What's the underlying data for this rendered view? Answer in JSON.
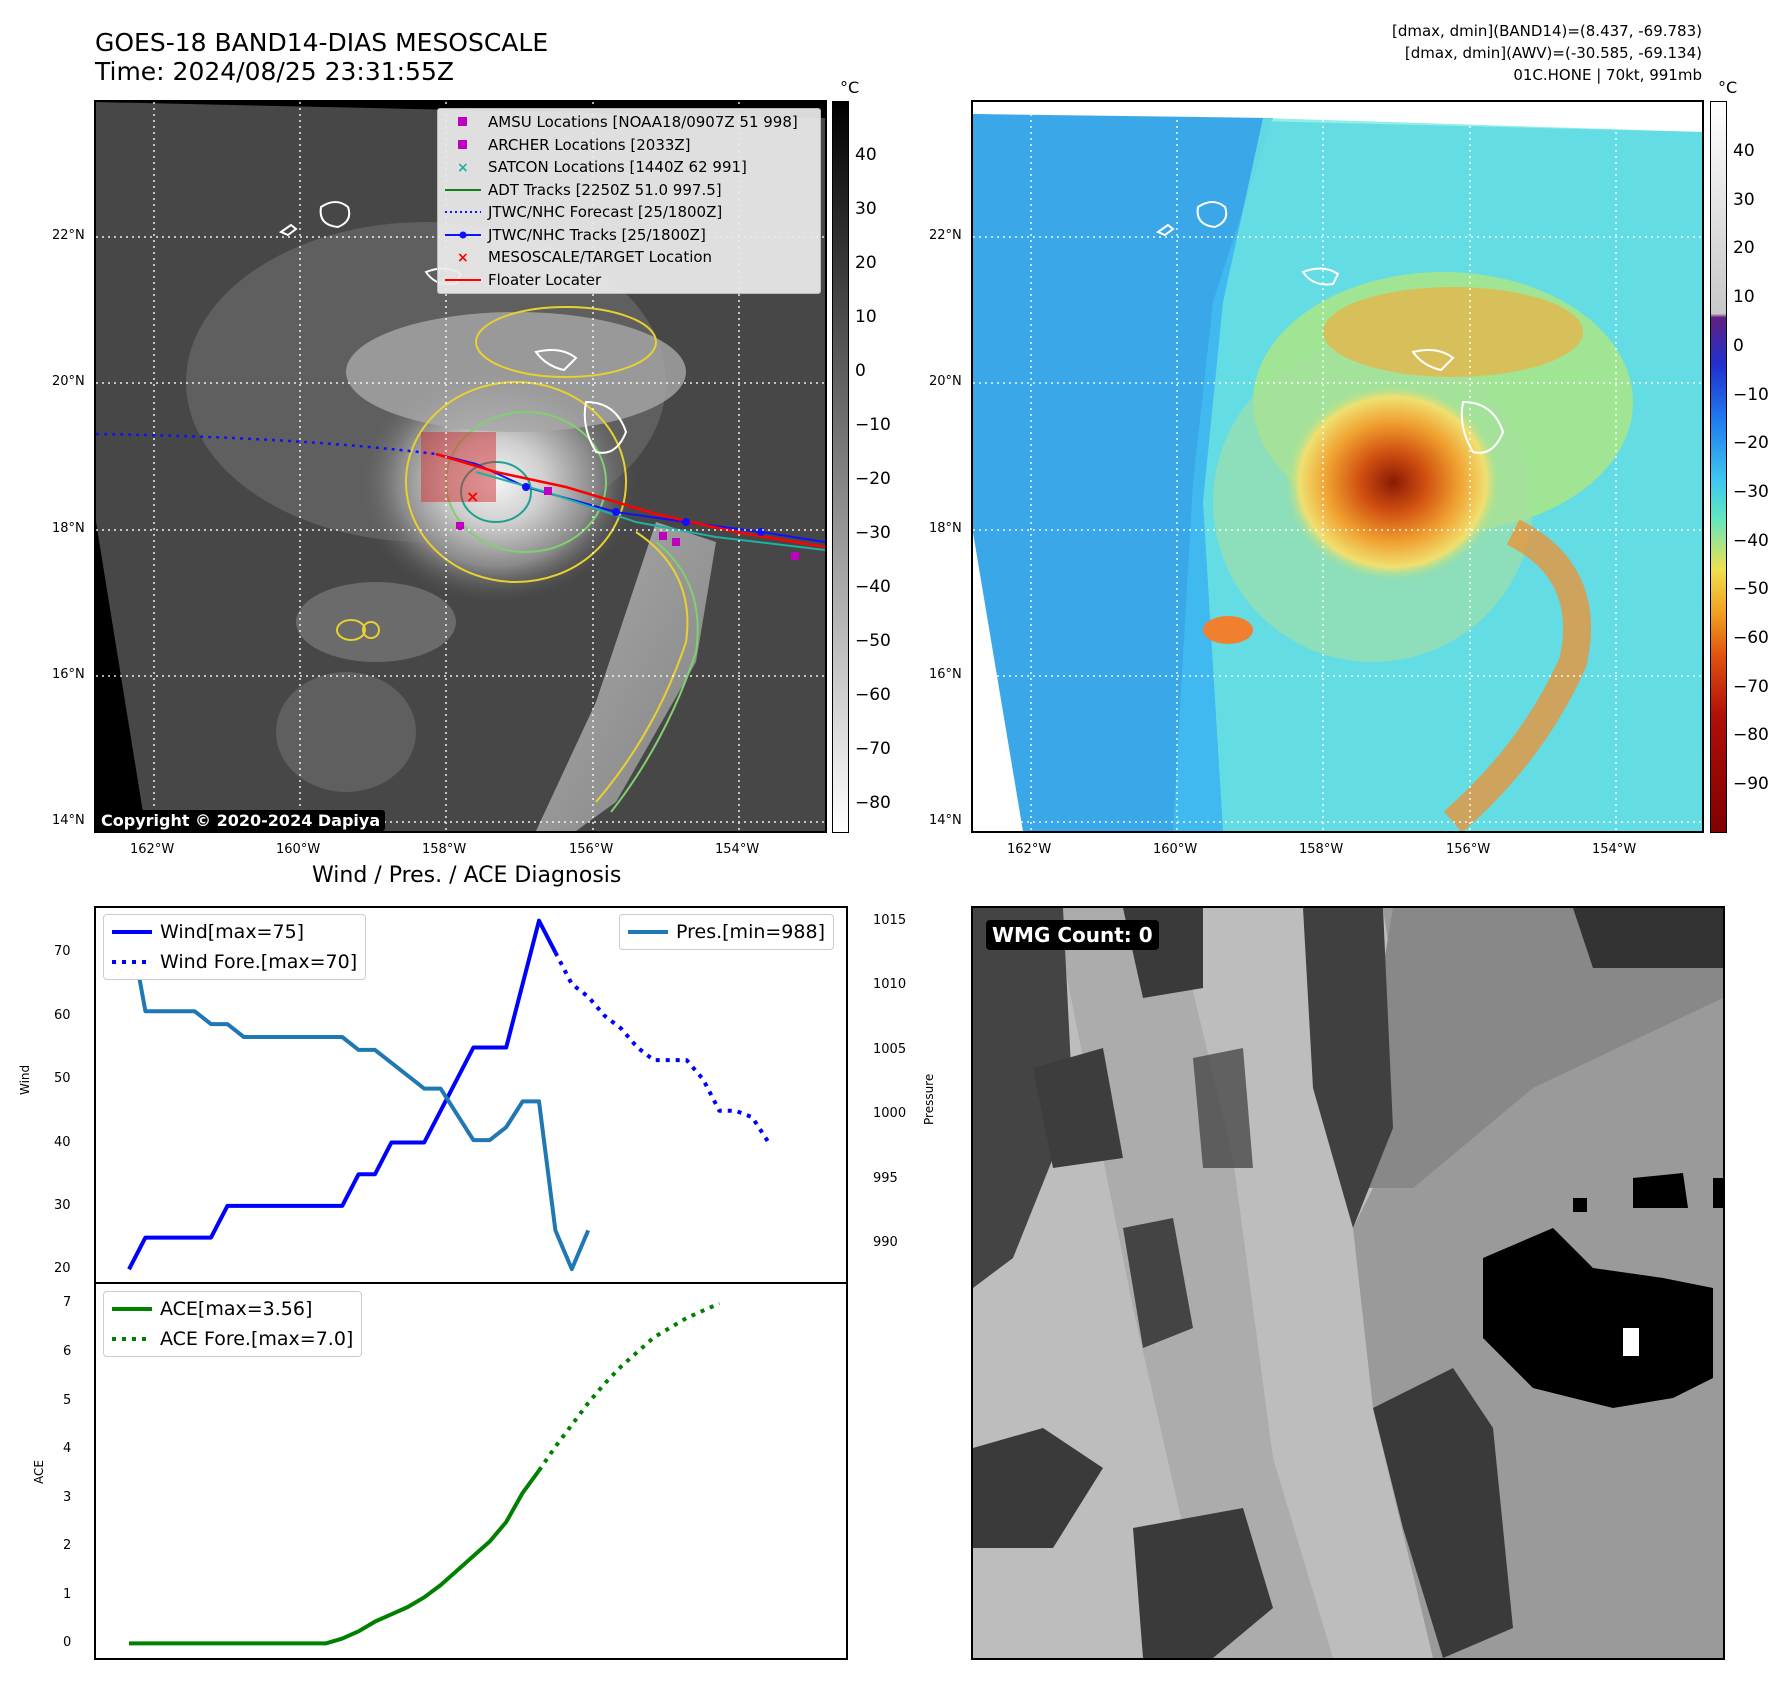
{
  "header": {
    "title_line1": "GOES-18 BAND14-DIAS MESOSCALE",
    "title_line2": "Time: 2024/08/25 23:31:55Z",
    "info_line1": "[dmax, dmin](BAND14)=(8.437, -69.783)",
    "info_line2": "[dmax, dmin](AWV)=(-30.585, -69.134)",
    "info_line3": "01C.HONE | 70kt, 991mb"
  },
  "maps": {
    "lon_ticks": [
      "162°W",
      "160°W",
      "158°W",
      "156°W",
      "154°W"
    ],
    "lat_ticks": [
      "22°N",
      "20°N",
      "18°N",
      "16°N",
      "14°N"
    ],
    "colorbar_unit": "°C",
    "colorbar_ticks": [
      "40",
      "30",
      "20",
      "10",
      "0",
      "−10",
      "−20",
      "−30",
      "−40",
      "−50",
      "−60",
      "−70",
      "−80",
      "−90"
    ],
    "copyright": "Copyright © 2020-2024 Dapiya",
    "legend": [
      {
        "label": "AMSU Locations [NOAA18/0907Z 51 998]",
        "symbol": "square",
        "color": "#c000c0"
      },
      {
        "label": "ARCHER Locations [2033Z]",
        "symbol": "square",
        "color": "#c000c0"
      },
      {
        "label": "SATCON Locations [1440Z 62 991]",
        "symbol": "x",
        "color": "#20b0a0"
      },
      {
        "label": "ADT Tracks [2250Z 51.0 997.5]",
        "symbol": "line",
        "color": "#108010"
      },
      {
        "label": "JTWC/NHC Forecast [25/1800Z]",
        "symbol": "dotted",
        "color": "#1010ff"
      },
      {
        "label": "JTWC/NHC Tracks [25/1800Z]",
        "symbol": "line-dot",
        "color": "#1010ff"
      },
      {
        "label": "MESOSCALE/TARGET Location",
        "symbol": "x",
        "color": "#ff0000"
      },
      {
        "label": "Floater Locater",
        "symbol": "line",
        "color": "#ff0000"
      }
    ]
  },
  "diagnosis": {
    "title": "Wind / Pres. / ACE Diagnosis",
    "wmg_label": "WMG Count: 0"
  },
  "chart_data": [
    {
      "type": "line",
      "title": "Wind / Pres. / ACE Diagnosis",
      "ylabel": "Wind",
      "y2label": "Pressure",
      "ylim": [
        18,
        77
      ],
      "y2lim": [
        987,
        1016
      ],
      "yticks": [
        20,
        30,
        40,
        50,
        60,
        70
      ],
      "y2ticks": [
        990,
        995,
        1000,
        1005,
        1010,
        1015
      ],
      "series": [
        {
          "name": "Wind[max=75]",
          "axis": "left",
          "style": "solid",
          "color": "#0000ff",
          "values": [
            20,
            25,
            25,
            25,
            25,
            25,
            30,
            30,
            30,
            30,
            30,
            30,
            30,
            30,
            35,
            35,
            40,
            40,
            40,
            45,
            50,
            55,
            55,
            55,
            65,
            75,
            70
          ]
        },
        {
          "name": "Wind Fore.[max=70]",
          "axis": "left",
          "style": "dotted",
          "color": "#0000ff",
          "offset": 26,
          "values": [
            70,
            65,
            63,
            60,
            58,
            55,
            53,
            53,
            53,
            50,
            45,
            45,
            44,
            40
          ]
        },
        {
          "name": "Pres.[min=988]",
          "axis": "right",
          "style": "solid",
          "color": "#1f77b4",
          "values": [
            1015,
            1008,
            1008,
            1008,
            1008,
            1007,
            1007,
            1006,
            1006,
            1006,
            1006,
            1006,
            1006,
            1006,
            1005,
            1005,
            1004,
            1003,
            1002,
            1002,
            1000,
            998,
            998,
            999,
            1001,
            1001,
            991,
            988,
            991
          ]
        }
      ],
      "legend": [
        "Wind[max=75]",
        "Wind Fore.[max=70]",
        "Pres.[min=988]"
      ]
    },
    {
      "type": "line",
      "ylabel": "ACE",
      "ylim": [
        -0.3,
        7.4
      ],
      "yticks": [
        0,
        1,
        2,
        3,
        4,
        5,
        6,
        7
      ],
      "series": [
        {
          "name": "ACE[max=3.56]",
          "style": "solid",
          "color": "#008000",
          "values": [
            0,
            0,
            0,
            0,
            0,
            0,
            0,
            0,
            0,
            0,
            0,
            0,
            0,
            0.1,
            0.25,
            0.45,
            0.6,
            0.75,
            0.95,
            1.2,
            1.5,
            1.8,
            2.1,
            2.5,
            3.1,
            3.56
          ]
        },
        {
          "name": "ACE Fore.[max=7.0]",
          "style": "dotted",
          "color": "#008000",
          "offset": 25,
          "values": [
            3.56,
            4.05,
            4.5,
            4.95,
            5.35,
            5.7,
            6.0,
            6.3,
            6.5,
            6.7,
            6.85,
            7.0
          ]
        }
      ],
      "legend": [
        "ACE[max=3.56]",
        "ACE Fore.[max=7.0]"
      ]
    }
  ]
}
